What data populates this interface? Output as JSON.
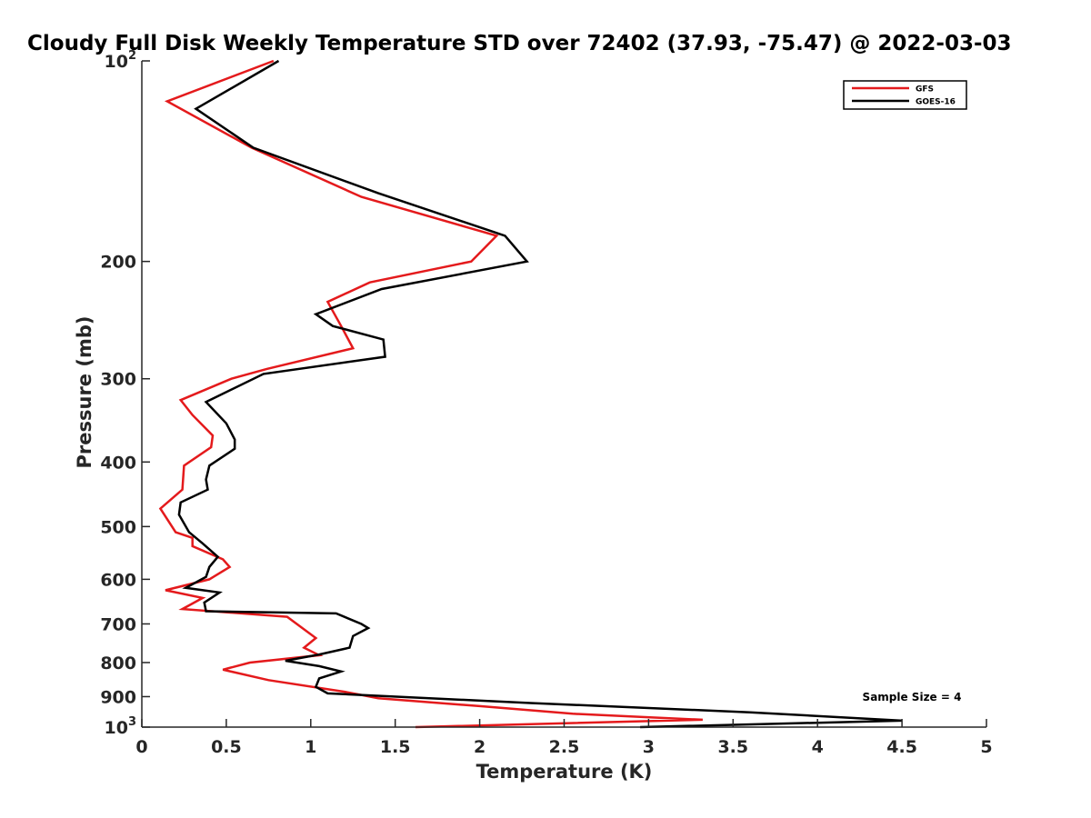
{
  "chart_data": {
    "type": "line",
    "title": "Cloudy Full Disk Weekly Temperature STD over 72402 (37.93, -75.47) @ 2022-03-03",
    "xlabel": "Temperature (K)",
    "ylabel": "Pressure (mb)",
    "xlim": [
      0,
      5
    ],
    "ylim": [
      100,
      1000
    ],
    "y_scale": "log",
    "y_reversed": true,
    "grid": false,
    "legend_position": "top-right",
    "x_ticks": [
      {
        "value": 0,
        "label": "0"
      },
      {
        "value": 0.5,
        "label": "0.5"
      },
      {
        "value": 1,
        "label": "1"
      },
      {
        "value": 1.5,
        "label": "1.5"
      },
      {
        "value": 2,
        "label": "2"
      },
      {
        "value": 2.5,
        "label": "2.5"
      },
      {
        "value": 3,
        "label": "3"
      },
      {
        "value": 3.5,
        "label": "3.5"
      },
      {
        "value": 4,
        "label": "4"
      },
      {
        "value": 4.5,
        "label": "4.5"
      },
      {
        "value": 5,
        "label": "5"
      }
    ],
    "y_ticks": [
      {
        "value": 100,
        "base": "10",
        "exp": "2"
      },
      {
        "value": 200,
        "base": "200",
        "exp": ""
      },
      {
        "value": 300,
        "base": "300",
        "exp": ""
      },
      {
        "value": 400,
        "base": "400",
        "exp": ""
      },
      {
        "value": 500,
        "base": "500",
        "exp": ""
      },
      {
        "value": 600,
        "base": "600",
        "exp": ""
      },
      {
        "value": 700,
        "base": "700",
        "exp": ""
      },
      {
        "value": 800,
        "base": "800",
        "exp": ""
      },
      {
        "value": 900,
        "base": "900",
        "exp": ""
      },
      {
        "value": 1000,
        "base": "10",
        "exp": "3"
      }
    ],
    "series": [
      {
        "name": "GFS",
        "color": "#e41a1c",
        "points": [
          [
            0.78,
            100
          ],
          [
            0.15,
            115
          ],
          [
            0.65,
            135
          ],
          [
            1.3,
            160
          ],
          [
            2.1,
            183
          ],
          [
            1.95,
            200
          ],
          [
            1.35,
            215
          ],
          [
            1.1,
            230
          ],
          [
            1.18,
            250
          ],
          [
            1.25,
            270
          ],
          [
            0.74,
            290
          ],
          [
            0.53,
            300
          ],
          [
            0.23,
            323
          ],
          [
            0.3,
            340
          ],
          [
            0.42,
            365
          ],
          [
            0.41,
            380
          ],
          [
            0.25,
            405
          ],
          [
            0.24,
            440
          ],
          [
            0.11,
            470
          ],
          [
            0.2,
            510
          ],
          [
            0.3,
            520
          ],
          [
            0.3,
            535
          ],
          [
            0.48,
            560
          ],
          [
            0.52,
            575
          ],
          [
            0.4,
            600
          ],
          [
            0.14,
            623
          ],
          [
            0.36,
            640
          ],
          [
            0.24,
            665
          ],
          [
            0.86,
            683
          ],
          [
            0.95,
            710
          ],
          [
            1.03,
            735
          ],
          [
            0.96,
            760
          ],
          [
            1.05,
            780
          ],
          [
            0.64,
            800
          ],
          [
            0.48,
            820
          ],
          [
            0.75,
            850
          ],
          [
            1.2,
            885
          ],
          [
            1.4,
            905
          ],
          [
            2.0,
            930
          ],
          [
            2.55,
            955
          ],
          [
            3.32,
            975
          ],
          [
            1.62,
            1000
          ]
        ]
      },
      {
        "name": "GOES-16",
        "color": "#000000",
        "points": [
          [
            0.81,
            100
          ],
          [
            0.32,
            118
          ],
          [
            0.66,
            135
          ],
          [
            1.4,
            158
          ],
          [
            2.15,
            183
          ],
          [
            2.28,
            200
          ],
          [
            1.42,
            220
          ],
          [
            1.03,
            240
          ],
          [
            1.13,
            250
          ],
          [
            1.43,
            262
          ],
          [
            1.44,
            278
          ],
          [
            0.72,
            295
          ],
          [
            0.38,
            325
          ],
          [
            0.5,
            350
          ],
          [
            0.55,
            370
          ],
          [
            0.55,
            382
          ],
          [
            0.4,
            405
          ],
          [
            0.38,
            425
          ],
          [
            0.39,
            440
          ],
          [
            0.23,
            460
          ],
          [
            0.22,
            480
          ],
          [
            0.28,
            510
          ],
          [
            0.36,
            530
          ],
          [
            0.45,
            555
          ],
          [
            0.4,
            575
          ],
          [
            0.38,
            595
          ],
          [
            0.26,
            618
          ],
          [
            0.46,
            628
          ],
          [
            0.37,
            650
          ],
          [
            0.38,
            670
          ],
          [
            1.15,
            675
          ],
          [
            1.3,
            700
          ],
          [
            1.34,
            710
          ],
          [
            1.25,
            730
          ],
          [
            1.23,
            760
          ],
          [
            1.05,
            778
          ],
          [
            0.85,
            795
          ],
          [
            1.05,
            810
          ],
          [
            1.18,
            825
          ],
          [
            1.05,
            845
          ],
          [
            1.03,
            870
          ],
          [
            1.1,
            890
          ],
          [
            2.3,
            920
          ],
          [
            3.6,
            950
          ],
          [
            4.5,
            978
          ],
          [
            2.95,
            1000
          ]
        ]
      }
    ],
    "annotations": [
      {
        "text": "Sample Size = 4"
      }
    ]
  }
}
